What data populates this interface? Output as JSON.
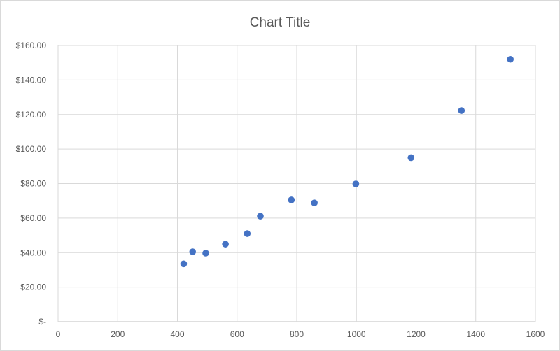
{
  "chart_data": {
    "type": "scatter",
    "title": "Chart Title",
    "xlabel": "",
    "ylabel": "",
    "xlim": [
      0,
      1600
    ],
    "ylim": [
      0,
      160
    ],
    "x_ticks": [
      "0",
      "200",
      "400",
      "600",
      "800",
      "1000",
      "1200",
      "1400",
      "1600"
    ],
    "y_ticks": [
      "$-",
      "$20.00",
      "$40.00",
      "$60.00",
      "$80.00",
      "$100.00",
      "$120.00",
      "$140.00",
      "$160.00"
    ],
    "grid": true,
    "legend": "none",
    "marker_color": "#4472C4",
    "series": [
      {
        "points": [
          {
            "x": 421,
            "y": 33.5
          },
          {
            "x": 451,
            "y": 40.5
          },
          {
            "x": 495,
            "y": 39.7
          },
          {
            "x": 561,
            "y": 44.9
          },
          {
            "x": 634,
            "y": 51.0
          },
          {
            "x": 678,
            "y": 61.1
          },
          {
            "x": 782,
            "y": 70.5
          },
          {
            "x": 859,
            "y": 68.8
          },
          {
            "x": 998,
            "y": 79.8
          },
          {
            "x": 1183,
            "y": 95.0
          },
          {
            "x": 1352,
            "y": 122.3
          },
          {
            "x": 1516,
            "y": 152.0
          }
        ]
      }
    ]
  }
}
